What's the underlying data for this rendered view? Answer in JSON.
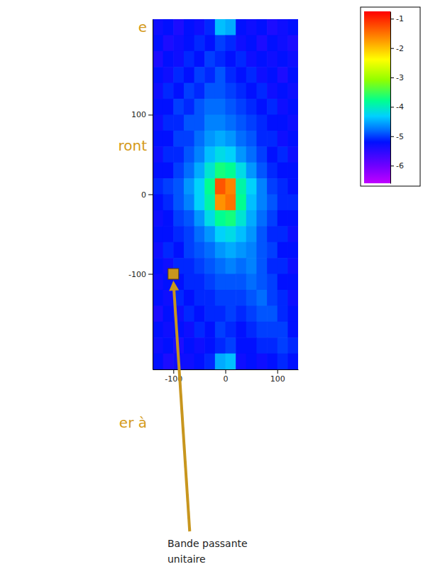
{
  "chart_data": {
    "type": "heatmap",
    "x": [
      -130,
      -110,
      -90,
      -70,
      -50,
      -30,
      -10,
      10,
      30,
      50,
      70,
      90,
      110,
      130
    ],
    "y": [
      210,
      190,
      170,
      150,
      130,
      110,
      90,
      70,
      50,
      30,
      10,
      -10,
      -30,
      -50,
      -70,
      -90,
      -110,
      -130,
      -150,
      -170,
      -190,
      -210
    ],
    "z": [
      [
        -5.3,
        -5.2,
        -5.4,
        -5.2,
        -5.3,
        -5.1,
        -4.4,
        -4.5,
        -5.2,
        -5.3,
        -5.2,
        -5.4,
        -5.3,
        -5.2
      ],
      [
        -5.2,
        -5.4,
        -5.3,
        -5.2,
        -5.1,
        -5.2,
        -5.0,
        -5.1,
        -5.3,
        -5.2,
        -5.4,
        -5.2,
        -5.3,
        -5.4
      ],
      [
        -5.4,
        -5.2,
        -5.3,
        -5.1,
        -5.2,
        -5.0,
        -5.1,
        -5.2,
        -5.1,
        -5.3,
        -5.2,
        -5.3,
        -5.2,
        -5.3
      ],
      [
        -5.2,
        -5.3,
        -5.1,
        -5.2,
        -5.0,
        -5.1,
        -4.9,
        -5.1,
        -5.2,
        -5.1,
        -5.3,
        -5.2,
        -5.4,
        -5.2
      ],
      [
        -5.3,
        -5.1,
        -5.2,
        -5.0,
        -5.1,
        -4.9,
        -4.9,
        -5.0,
        -5.1,
        -5.2,
        -5.1,
        -5.3,
        -5.2,
        -5.3
      ],
      [
        -5.2,
        -5.2,
        -5.0,
        -5.1,
        -4.9,
        -4.8,
        -4.8,
        -4.9,
        -5.0,
        -5.1,
        -5.2,
        -5.1,
        -5.3,
        -5.2
      ],
      [
        -5.3,
        -5.1,
        -5.1,
        -4.9,
        -4.9,
        -4.7,
        -4.7,
        -4.8,
        -4.9,
        -5.0,
        -5.1,
        -5.2,
        -5.2,
        -5.3
      ],
      [
        -5.2,
        -5.2,
        -5.0,
        -5.0,
        -4.8,
        -4.6,
        -4.5,
        -4.6,
        -4.8,
        -4.9,
        -5.1,
        -5.1,
        -5.3,
        -5.2
      ],
      [
        -5.3,
        -5.1,
        -5.1,
        -4.9,
        -4.7,
        -4.4,
        -4.2,
        -4.3,
        -4.6,
        -4.8,
        -5.0,
        -5.2,
        -5.1,
        -5.3
      ],
      [
        -5.2,
        -5.2,
        -5.0,
        -4.8,
        -4.5,
        -4.1,
        -3.7,
        -3.8,
        -4.2,
        -4.6,
        -4.9,
        -5.1,
        -5.2,
        -5.2
      ],
      [
        -5.1,
        -5.0,
        -4.9,
        -4.6,
        -4.3,
        -3.8,
        -1.3,
        -1.6,
        -3.9,
        -4.3,
        -4.7,
        -5.0,
        -5.1,
        -5.2
      ],
      [
        -5.2,
        -5.1,
        -4.9,
        -4.7,
        -4.3,
        -3.9,
        -1.7,
        -1.5,
        -3.8,
        -4.4,
        -4.7,
        -4.9,
        -5.1,
        -5.1
      ],
      [
        -5.3,
        -5.2,
        -5.0,
        -4.9,
        -4.6,
        -4.2,
        -3.8,
        -3.7,
        -4.1,
        -4.5,
        -4.8,
        -5.0,
        -5.2,
        -5.2
      ],
      [
        -5.2,
        -5.2,
        -5.1,
        -5.0,
        -4.8,
        -4.6,
        -4.3,
        -4.2,
        -4.4,
        -4.6,
        -4.9,
        -5.1,
        -5.1,
        -5.3
      ],
      [
        -5.3,
        -5.1,
        -5.2,
        -5.0,
        -4.9,
        -4.8,
        -4.6,
        -4.5,
        -4.6,
        -4.7,
        -4.9,
        -5.0,
        -5.2,
        -5.2
      ],
      [
        -5.2,
        -5.3,
        -5.1,
        -5.1,
        -5.0,
        -4.9,
        -4.8,
        -4.7,
        -4.8,
        -4.7,
        -4.9,
        -5.1,
        -5.1,
        -5.3
      ],
      [
        -5.3,
        -5.2,
        -5.2,
        -5.1,
        -5.1,
        -5.0,
        -4.9,
        -4.9,
        -4.9,
        -4.8,
        -4.9,
        -5.0,
        -5.2,
        -5.2
      ],
      [
        -5.2,
        -5.3,
        -5.1,
        -5.2,
        -5.1,
        -5.1,
        -5.0,
        -5.0,
        -5.0,
        -4.9,
        -4.8,
        -5.0,
        -5.1,
        -5.3
      ],
      [
        -5.4,
        -5.2,
        -5.3,
        -5.1,
        -5.2,
        -5.1,
        -5.1,
        -5.0,
        -5.1,
        -5.0,
        -4.9,
        -4.9,
        -5.1,
        -5.2
      ],
      [
        -5.2,
        -5.3,
        -5.2,
        -5.3,
        -5.1,
        -5.2,
        -5.0,
        -5.1,
        -5.2,
        -5.1,
        -5.0,
        -5.0,
        -5.0,
        -5.2
      ],
      [
        -5.3,
        -5.2,
        -5.4,
        -5.2,
        -5.3,
        -5.2,
        -5.1,
        -5.0,
        -5.2,
        -5.2,
        -5.1,
        -5.1,
        -5.0,
        -5.1
      ],
      [
        -5.2,
        -5.4,
        -5.3,
        -5.3,
        -5.2,
        -5.1,
        -4.5,
        -4.4,
        -5.3,
        -5.2,
        -5.3,
        -5.2,
        -5.1,
        -5.2
      ]
    ],
    "xlim": [
      -140,
      140
    ],
    "ylim": [
      -220,
      220
    ],
    "xticks": [
      -100,
      0,
      100
    ],
    "yticks": [
      -100,
      0,
      100
    ],
    "zlim": [
      -6.6,
      -0.75
    ],
    "zticks": [
      -1,
      -2,
      -3,
      -4,
      -5,
      -6
    ],
    "annotations": [
      {
        "text": "Bande passante unitaire",
        "x": -100,
        "y": -100,
        "marker": "square"
      }
    ],
    "side_text": [
      "e",
      "ront",
      "er à"
    ]
  }
}
